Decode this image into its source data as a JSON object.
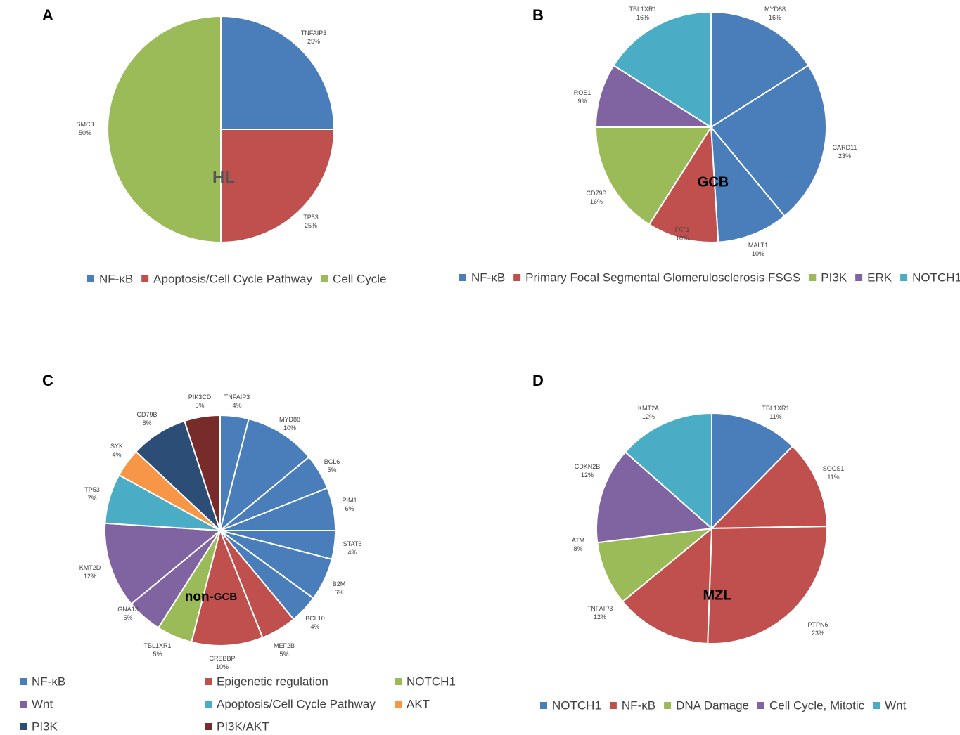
{
  "chart_data": [
    {
      "type": "pie",
      "panel": "A",
      "title": "HL",
      "legend": [
        {
          "label": "NF-κB",
          "color": "#4a7ebb"
        },
        {
          "label": "Apoptosis/Cell Cycle Pathway",
          "color": "#c0504d"
        },
        {
          "label": "Cell Cycle",
          "color": "#9bbb59"
        }
      ],
      "slices": [
        {
          "gene": "TNFAIP3",
          "pct": "25%",
          "value": 25,
          "color": "#4a7ebb"
        },
        {
          "gene": "TP53",
          "pct": "25%",
          "value": 25,
          "color": "#c0504d"
        },
        {
          "gene": "SMC3",
          "pct": "50%",
          "value": 50,
          "color": "#9bbb59"
        }
      ]
    },
    {
      "type": "pie",
      "panel": "B",
      "title": "GCB",
      "legend": [
        {
          "label": "NF-κB",
          "color": "#4a7ebb"
        },
        {
          "label": "Primary Focal Segmental Glomerulosclerosis FSGS",
          "color": "#c0504d"
        },
        {
          "label": "PI3K",
          "color": "#9bbb59"
        },
        {
          "label": "ERK",
          "color": "#8064a2"
        },
        {
          "label": "NOTCH1",
          "color": "#4bacc6"
        }
      ],
      "slices": [
        {
          "gene": "MYD88",
          "pct": "16%",
          "value": 16,
          "color": "#4a7ebb"
        },
        {
          "gene": "CARD11",
          "pct": "23%",
          "value": 23,
          "color": "#4a7ebb"
        },
        {
          "gene": "MALT1",
          "pct": "10%",
          "value": 10,
          "color": "#4a7ebb"
        },
        {
          "gene": "FAT1",
          "pct": "10%",
          "value": 10,
          "color": "#c0504d"
        },
        {
          "gene": "CD79B",
          "pct": "16%",
          "value": 16,
          "color": "#9bbb59"
        },
        {
          "gene": "ROS1",
          "pct": "9%",
          "value": 9,
          "color": "#8064a2"
        },
        {
          "gene": "TBL1XR1",
          "pct": "16%",
          "value": 16,
          "color": "#4bacc6"
        }
      ]
    },
    {
      "type": "pie",
      "panel": "C",
      "title_main": "non-",
      "title_sub": "GCB",
      "legend": [
        {
          "label": "NF-κB",
          "color": "#4a7ebb"
        },
        {
          "label": "Epigenetic regulation",
          "color": "#c0504d"
        },
        {
          "label": "NOTCH1",
          "color": "#9bbb59"
        },
        {
          "label": "Wnt",
          "color": "#8064a2"
        },
        {
          "label": "Apoptosis/Cell Cycle Pathway",
          "color": "#4bacc6"
        },
        {
          "label": "AKT",
          "color": "#f79646"
        },
        {
          "label": "PI3K",
          "color": "#2c4d75"
        },
        {
          "label": "PI3K/AKT",
          "color": "#772c2a"
        }
      ],
      "slices": [
        {
          "gene": "TNFAIP3",
          "pct": "4%",
          "value": 4,
          "color": "#4a7ebb"
        },
        {
          "gene": "MYD88",
          "pct": "10%",
          "value": 10,
          "color": "#4a7ebb"
        },
        {
          "gene": "BCL6",
          "pct": "5%",
          "value": 5,
          "color": "#4a7ebb"
        },
        {
          "gene": "PIM1",
          "pct": "6%",
          "value": 6,
          "color": "#4a7ebb"
        },
        {
          "gene": "STAT6",
          "pct": "4%",
          "value": 4,
          "color": "#4a7ebb"
        },
        {
          "gene": "B2M",
          "pct": "6%",
          "value": 6,
          "color": "#4a7ebb"
        },
        {
          "gene": "BCL10",
          "pct": "4%",
          "value": 4,
          "color": "#4a7ebb"
        },
        {
          "gene": "MEF2B",
          "pct": "5%",
          "value": 5,
          "color": "#c0504d"
        },
        {
          "gene": "CREBBP",
          "pct": "10%",
          "value": 10,
          "color": "#c0504d"
        },
        {
          "gene": "TBL1XR1",
          "pct": "5%",
          "value": 5,
          "color": "#9bbb59"
        },
        {
          "gene": "GNA13",
          "pct": "5%",
          "value": 5,
          "color": "#8064a2"
        },
        {
          "gene": "KMT2D",
          "pct": "12%",
          "value": 12,
          "color": "#8064a2"
        },
        {
          "gene": "TP53",
          "pct": "7%",
          "value": 7,
          "color": "#4bacc6"
        },
        {
          "gene": "SYK",
          "pct": "4%",
          "value": 4,
          "color": "#f79646"
        },
        {
          "gene": "CD79B",
          "pct": "8%",
          "value": 8,
          "color": "#2c4d75"
        },
        {
          "gene": "PIK3CD",
          "pct": "5%",
          "value": 5,
          "color": "#772c2a"
        }
      ]
    },
    {
      "type": "pie",
      "panel": "D",
      "title": "MZL",
      "legend": [
        {
          "label": "NOTCH1",
          "color": "#4a7ebb"
        },
        {
          "label": "NF-κB",
          "color": "#c0504d"
        },
        {
          "label": "DNA Damage",
          "color": "#9bbb59"
        },
        {
          "label": "Cell Cycle, Mitotic",
          "color": "#8064a2"
        },
        {
          "label": "Wnt",
          "color": "#4bacc6"
        }
      ],
      "slices": [
        {
          "gene": "TBL1XR1",
          "pct": "11%",
          "value": 11,
          "color": "#4a7ebb"
        },
        {
          "gene": "SOCS1",
          "pct": "11%",
          "value": 11,
          "color": "#c0504d"
        },
        {
          "gene": "PTPN6",
          "pct": "23%",
          "value": 23,
          "color": "#c0504d"
        },
        {
          "gene": "TNFAIP3",
          "pct": "12%",
          "value": 12,
          "color": "#c0504d"
        },
        {
          "gene": "ATM",
          "pct": "8%",
          "value": 8,
          "color": "#9bbb59"
        },
        {
          "gene": "CDKN2B",
          "pct": "12%",
          "value": 12,
          "color": "#8064a2"
        },
        {
          "gene": "KMT2A",
          "pct": "12%",
          "value": 12,
          "color": "#4bacc6"
        }
      ]
    }
  ]
}
